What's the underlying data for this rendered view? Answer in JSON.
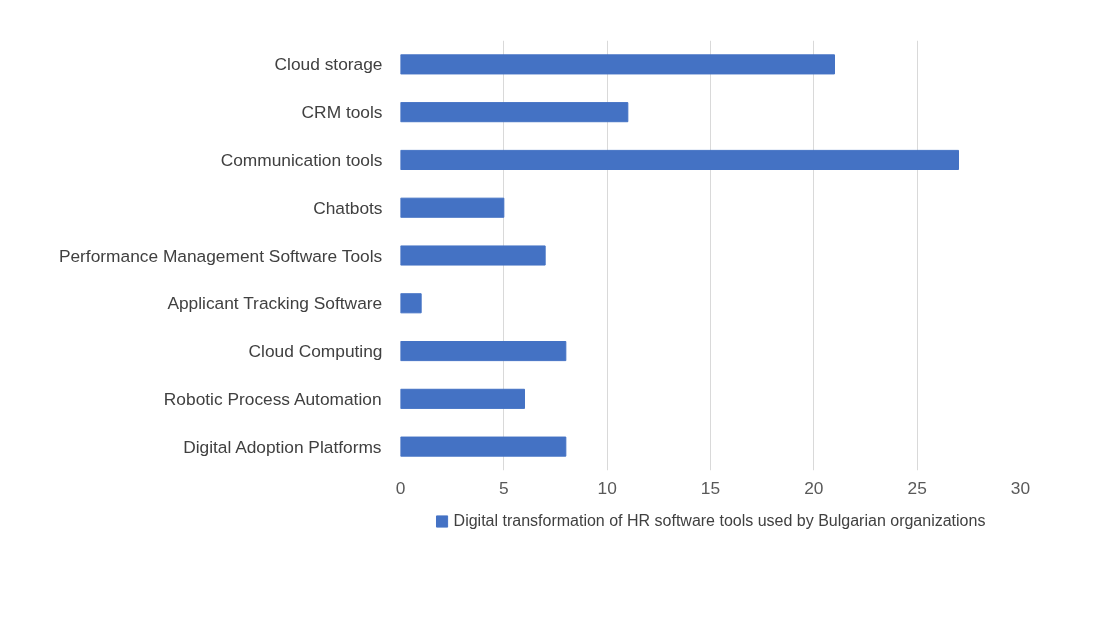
{
  "chart_data": {
    "type": "bar",
    "orientation": "horizontal",
    "categories": [
      "Cloud storage",
      "CRM tools",
      "Communication tools",
      "Chatbots",
      "Performance Management Software Tools",
      "Applicant Tracking Software",
      "Cloud Computing",
      "Robotic Process Automation",
      "Digital Adoption Platforms"
    ],
    "series": [
      {
        "name": "Digital transformation of HR software tools used by Bulgarian organizations",
        "color": "#4472c4",
        "values": [
          21,
          11,
          27,
          5,
          7,
          1,
          8,
          6,
          8
        ]
      }
    ],
    "xlim": [
      0,
      30
    ],
    "xticks": [
      0,
      5,
      10,
      15,
      20,
      25,
      30
    ],
    "grid": "x",
    "legend": "bottom"
  }
}
